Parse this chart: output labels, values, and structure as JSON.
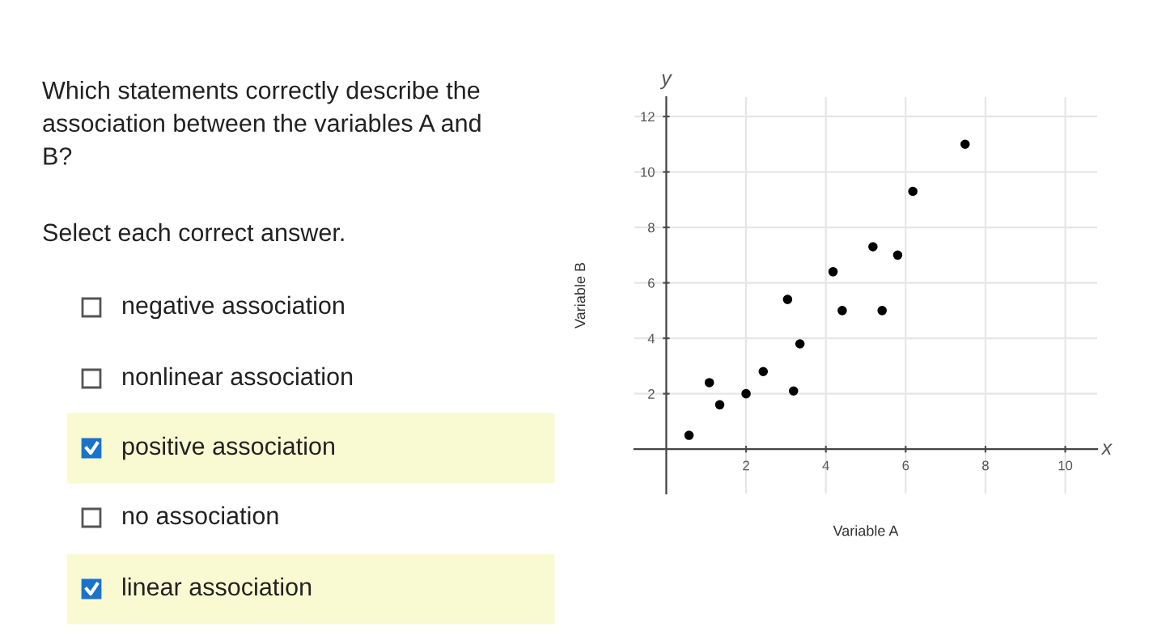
{
  "chart_data": {
    "type": "scatter",
    "xlabel": "Variable A",
    "ylabel": "Variable B",
    "x": [
      0.57,
      1.08,
      1.34,
      2.0,
      2.43,
      3.04,
      3.19,
      3.35,
      4.18,
      4.41,
      5.18,
      5.41,
      5.8,
      6.18,
      7.49
    ],
    "values": [
      0.5,
      2.4,
      1.6,
      2.0,
      2.8,
      5.4,
      2.1,
      3.8,
      6.4,
      5.0,
      7.3,
      5.0,
      7.0,
      9.3,
      11.0
    ],
    "color": "#000000",
    "marker": "circle",
    "grid": true,
    "xlim": [
      -0.8,
      10.8
    ],
    "ylim": [
      -1.6,
      12.7
    ],
    "xticks": [
      2,
      4,
      6,
      8,
      10
    ],
    "yticks": [
      2,
      4,
      6,
      8,
      10,
      12
    ],
    "annotations": [
      "Which statements correctly describe the\nassociation between the variables A and\nB?",
      "Select each correct answer.",
      "negative association",
      "nonlinear association",
      "positive association",
      "no association",
      "linear association",
      "x",
      "y"
    ]
  }
}
